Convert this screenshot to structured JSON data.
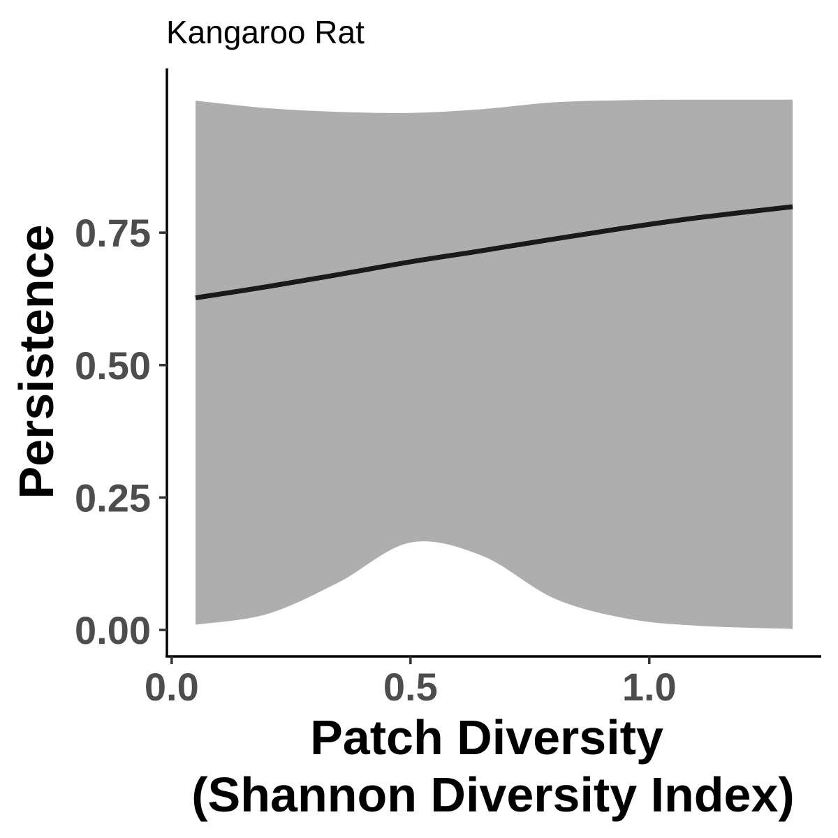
{
  "chart_data": {
    "type": "line",
    "title": "Kangaroo Rat",
    "xlabel_line1": "Patch Diversity",
    "xlabel_line2": "(Shannon Diversity Index)",
    "ylabel": "Persistence",
    "xlim": [
      -0.01,
      1.36
    ],
    "ylim": [
      -0.05,
      1.06
    ],
    "x_ticks": [
      0.0,
      0.5,
      1.0
    ],
    "x_tick_labels": [
      "0.0",
      "0.5",
      "1.0"
    ],
    "y_ticks": [
      0.0,
      0.25,
      0.5,
      0.75
    ],
    "y_tick_labels": [
      "0.00",
      "0.25",
      "0.50",
      "0.75"
    ],
    "grid": false,
    "series": [
      {
        "x": [
          0.05,
          0.2,
          0.35,
          0.5,
          0.65,
          0.8,
          0.95,
          1.1,
          1.3
        ],
        "y": [
          0.627,
          0.648,
          0.671,
          0.695,
          0.716,
          0.738,
          0.759,
          0.778,
          0.799
        ],
        "lower": [
          0.01,
          0.03,
          0.09,
          0.165,
          0.14,
          0.06,
          0.022,
          0.008,
          0.002
        ],
        "upper": [
          0.999,
          0.985,
          0.978,
          0.976,
          0.983,
          0.996,
          1.0,
          1.001,
          1.001
        ],
        "line_color": "#1a1a1a",
        "band_color": "#aeaeae"
      }
    ]
  }
}
